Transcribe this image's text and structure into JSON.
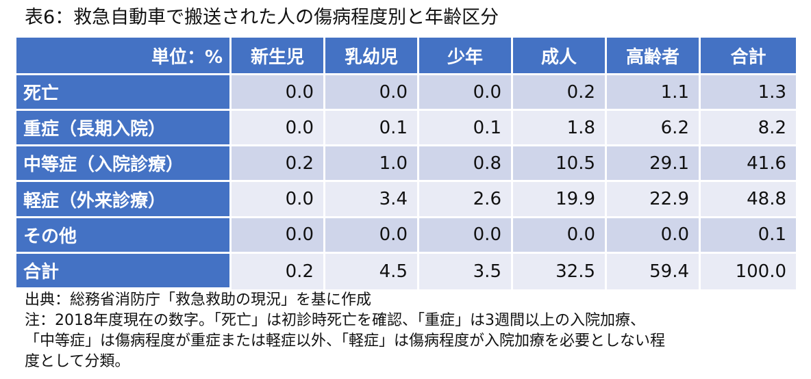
{
  "title": "表6：救急自動車で搬送された人の傷病程度別と年齢区分",
  "chart_data": {
    "type": "table",
    "title": "表6：救急自動車で搬送された人の傷病程度別と年齢区分",
    "unit_label": "単位：%",
    "columns": [
      "新生児",
      "乳幼児",
      "少年",
      "成人",
      "高齢者",
      "合計"
    ],
    "rows": [
      {
        "label": "死亡",
        "values": [
          "0.0",
          "0.0",
          "0.0",
          "0.2",
          "1.1",
          "1.3"
        ]
      },
      {
        "label": "重症（長期入院）",
        "values": [
          "0.0",
          "0.1",
          "0.1",
          "1.8",
          "6.2",
          "8.2"
        ]
      },
      {
        "label": "中等症（入院診療）",
        "values": [
          "0.2",
          "1.0",
          "0.8",
          "10.5",
          "29.1",
          "41.6"
        ]
      },
      {
        "label": "軽症（外来診療）",
        "values": [
          "0.0",
          "3.4",
          "2.6",
          "19.9",
          "22.9",
          "48.8"
        ]
      },
      {
        "label": "その他",
        "values": [
          "0.0",
          "0.0",
          "0.0",
          "0.0",
          "0.0",
          "0.1"
        ]
      },
      {
        "label": "合計",
        "values": [
          "0.2",
          "4.5",
          "3.5",
          "32.5",
          "59.4",
          "100.0"
        ]
      }
    ]
  },
  "notes": {
    "source": "出典：総務省消防庁「救急救助の現況」を基に作成",
    "lines": [
      "注：2018年度現在の数字。「死亡」は初診時死亡を確認、「重症」は3週間以上の入院加療、",
      "「中等症」は傷病程度が重症または軽症以外、「軽症」は傷病程度が入院加療を必要としない程",
      "度として分類。"
    ]
  },
  "colors": {
    "header_bg": "#4472c4",
    "row_odd_bg": "#cfd5ea",
    "row_even_bg": "#e9ebf5",
    "header_text": "#ffffff"
  }
}
